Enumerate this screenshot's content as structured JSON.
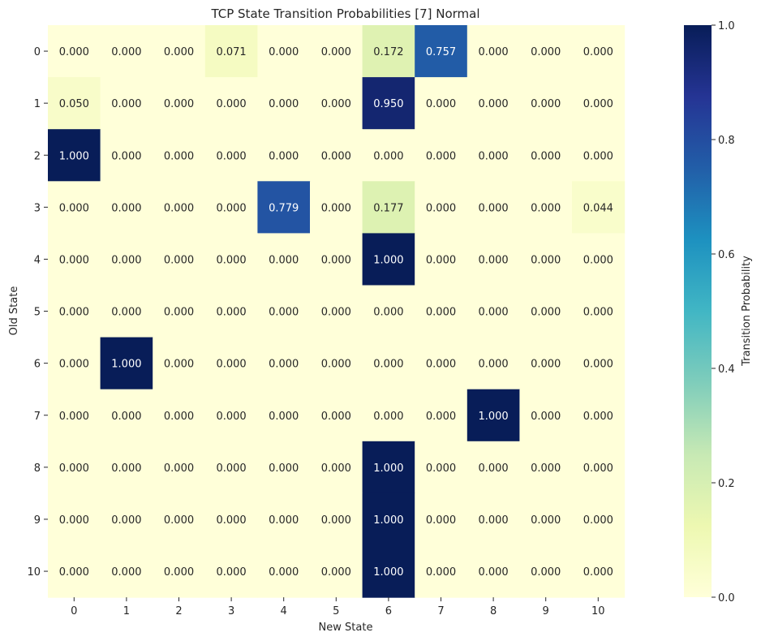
{
  "chart_data": {
    "type": "heatmap",
    "title": "TCP State Transition Probabilities [7] Normal",
    "xlabel": "New State",
    "ylabel": "Old State",
    "x_categories": [
      "0",
      "1",
      "2",
      "3",
      "4",
      "5",
      "6",
      "7",
      "8",
      "9",
      "10"
    ],
    "y_categories": [
      "0",
      "1",
      "2",
      "3",
      "4",
      "5",
      "6",
      "7",
      "8",
      "9",
      "10"
    ],
    "values": [
      [
        0.0,
        0.0,
        0.0,
        0.071,
        0.0,
        0.0,
        0.172,
        0.757,
        0.0,
        0.0,
        0.0
      ],
      [
        0.05,
        0.0,
        0.0,
        0.0,
        0.0,
        0.0,
        0.95,
        0.0,
        0.0,
        0.0,
        0.0
      ],
      [
        1.0,
        0.0,
        0.0,
        0.0,
        0.0,
        0.0,
        0.0,
        0.0,
        0.0,
        0.0,
        0.0
      ],
      [
        0.0,
        0.0,
        0.0,
        0.0,
        0.779,
        0.0,
        0.177,
        0.0,
        0.0,
        0.0,
        0.044
      ],
      [
        0.0,
        0.0,
        0.0,
        0.0,
        0.0,
        0.0,
        1.0,
        0.0,
        0.0,
        0.0,
        0.0
      ],
      [
        0.0,
        0.0,
        0.0,
        0.0,
        0.0,
        0.0,
        0.0,
        0.0,
        0.0,
        0.0,
        0.0
      ],
      [
        0.0,
        1.0,
        0.0,
        0.0,
        0.0,
        0.0,
        0.0,
        0.0,
        0.0,
        0.0,
        0.0
      ],
      [
        0.0,
        0.0,
        0.0,
        0.0,
        0.0,
        0.0,
        0.0,
        0.0,
        1.0,
        0.0,
        0.0
      ],
      [
        0.0,
        0.0,
        0.0,
        0.0,
        0.0,
        0.0,
        1.0,
        0.0,
        0.0,
        0.0,
        0.0
      ],
      [
        0.0,
        0.0,
        0.0,
        0.0,
        0.0,
        0.0,
        1.0,
        0.0,
        0.0,
        0.0,
        0.0
      ],
      [
        0.0,
        0.0,
        0.0,
        0.0,
        0.0,
        0.0,
        1.0,
        0.0,
        0.0,
        0.0,
        0.0
      ]
    ],
    "value_format": "3 decimals",
    "colormap": "YlGnBu",
    "colormap_stops": [
      "#ffffd9",
      "#edf8b1",
      "#c7e9b4",
      "#7fcdbb",
      "#41b6c4",
      "#1d91c0",
      "#225ea8",
      "#253494",
      "#081d58"
    ],
    "vmin": 0,
    "vmax": 1,
    "colorbar": {
      "label": "Transition Probability",
      "ticks": [
        0.0,
        0.2,
        0.4,
        0.6,
        0.8,
        1.0
      ],
      "tick_labels": [
        "0.0",
        "0.2",
        "0.4",
        "0.6",
        "0.8",
        "1.0"
      ],
      "placement": "right"
    },
    "grid": false
  }
}
